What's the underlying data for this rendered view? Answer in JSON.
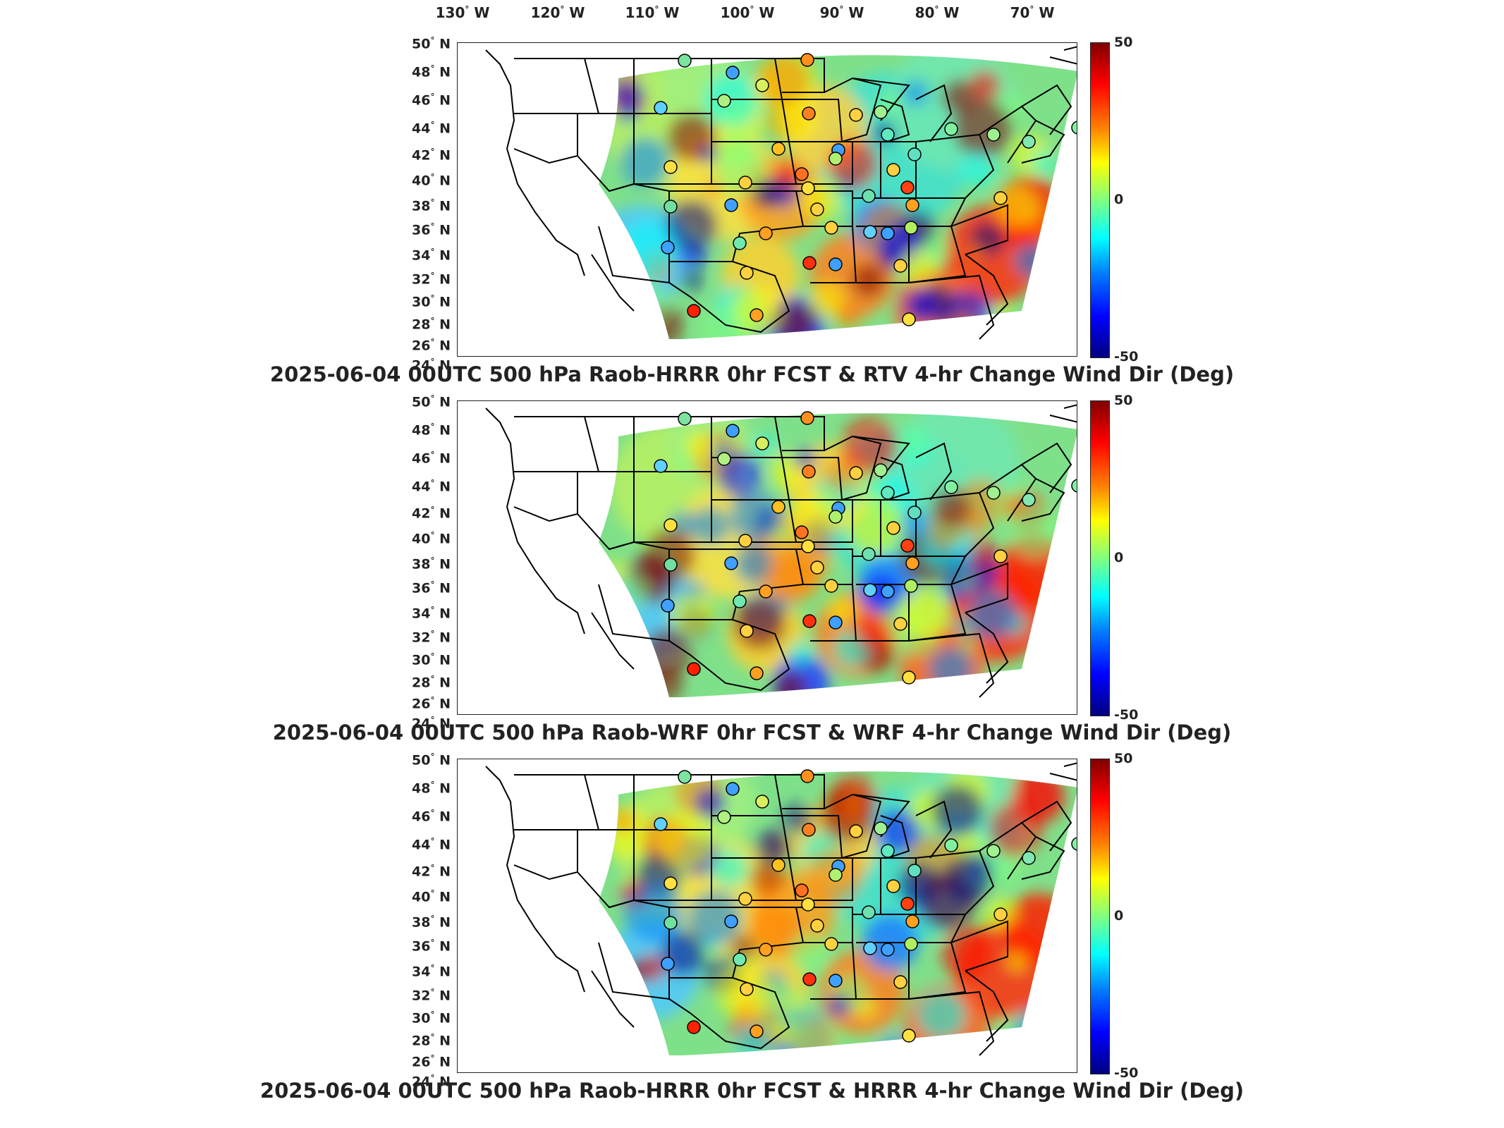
{
  "longitude_labels": [
    "130",
    "120",
    "110",
    "100",
    "90",
    "80",
    "70"
  ],
  "longitude_hemisphere": "W",
  "latitude_labels": [
    "50",
    "48",
    "46",
    "44",
    "42",
    "40",
    "38",
    "36",
    "34",
    "32",
    "30",
    "28",
    "26",
    "24"
  ],
  "latitude_hemisphere": "N",
  "colorbar": {
    "max": "50",
    "mid": "0",
    "min": "-50",
    "colors": [
      "#800000",
      "#ff0000",
      "#ff8000",
      "#ffff00",
      "#80ff80",
      "#00ffff",
      "#0080ff",
      "#0000ff",
      "#000080"
    ]
  },
  "panels": [
    {
      "title": "2025-06-04 00UTC 500 hPa Raob-HRRR 0hr FCST & RTV 4-hr Change Wind Dir (Deg)"
    },
    {
      "title": "2025-06-04 00UTC 500 hPa Raob-WRF 0hr FCST & WRF 4-hr Change Wind Dir (Deg)"
    },
    {
      "title": "2025-06-04 00UTC 500 hPa Raob-HRRR 0hr FCST & HRRR 4-hr Change Wind Dir (Deg)"
    }
  ]
}
